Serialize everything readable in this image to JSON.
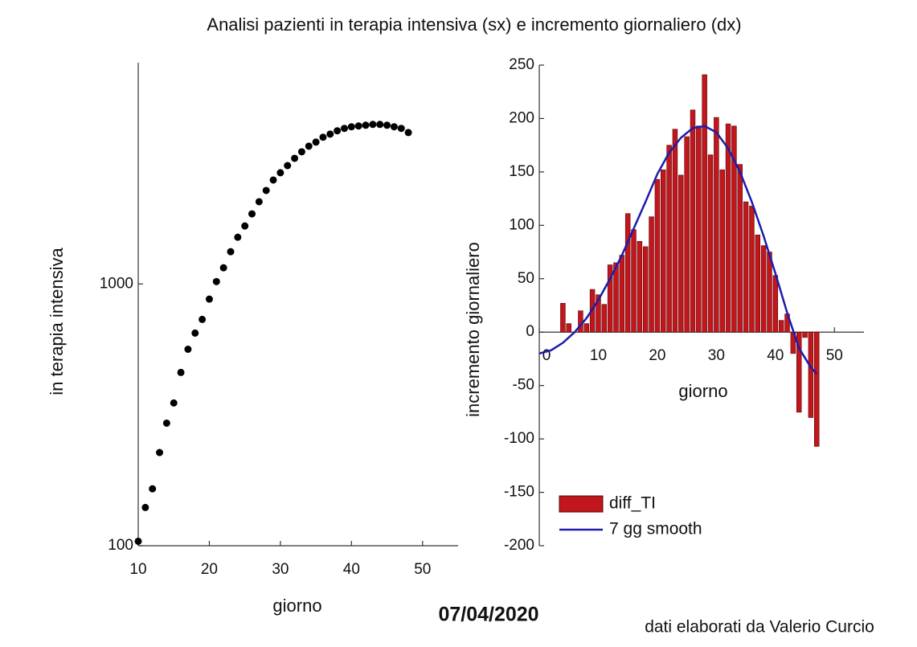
{
  "title": "Analisi pazienti in terapia intensiva (sx) e incremento giornaliero (dx)",
  "date": "07/04/2020",
  "credit": "dati elaborati da Valerio Curcio",
  "chart_data": [
    {
      "type": "scatter",
      "xlabel": "giorno",
      "ylabel": "in terapia intensiva",
      "yscale": "log",
      "color": "#000000",
      "xlim": [
        10,
        55
      ],
      "xticks": [
        10,
        20,
        30,
        40,
        50
      ],
      "ylim": [
        100,
        7000
      ],
      "yticks": [
        100,
        1000
      ],
      "x": [
        10,
        11,
        12,
        13,
        14,
        15,
        16,
        17,
        18,
        19,
        20,
        21,
        22,
        23,
        24,
        25,
        26,
        27,
        28,
        29,
        30,
        31,
        32,
        33,
        34,
        35,
        36,
        37,
        38,
        39,
        40,
        41,
        42,
        43,
        44,
        45,
        46,
        47,
        48
      ],
      "values": [
        104,
        140,
        165,
        227,
        294,
        351,
        459,
        563,
        649,
        732,
        875,
        1021,
        1153,
        1328,
        1508,
        1665,
        1852,
        2061,
        2275,
        2494,
        2659,
        2832,
        3019,
        3197,
        3360,
        3482,
        3634,
        3736,
        3846,
        3929,
        3985,
        4012,
        4040,
        4068,
        4068,
        4040,
        3985,
        3929,
        3787
      ]
    },
    {
      "type": "bar",
      "xlabel": "giorno",
      "ylabel": "incremento giornaliero",
      "legend": "lower left",
      "xlim": [
        0,
        55
      ],
      "xticks": [
        0,
        10,
        20,
        30,
        40,
        50
      ],
      "ylim": [
        -200,
        250
      ],
      "yticks": [
        -200,
        -150,
        -100,
        -50,
        0,
        50,
        100,
        150,
        200,
        250
      ],
      "series": [
        {
          "name": "diff_TI",
          "type": "bar",
          "color": "#c0161c",
          "x": [
            4,
            5,
            6,
            7,
            8,
            9,
            10,
            11,
            12,
            13,
            14,
            15,
            16,
            17,
            18,
            19,
            20,
            21,
            22,
            23,
            24,
            25,
            26,
            27,
            28,
            29,
            30,
            31,
            32,
            33,
            34,
            35,
            36,
            37,
            38,
            39,
            40,
            41,
            42,
            43,
            44,
            45,
            46,
            47
          ],
          "values": [
            27,
            8,
            0,
            20,
            8,
            40,
            35,
            26,
            63,
            65,
            72,
            111,
            96,
            85,
            80,
            108,
            143,
            152,
            175,
            190,
            147,
            183,
            208,
            193,
            241,
            166,
            201,
            152,
            195,
            193,
            157,
            122,
            118,
            91,
            81,
            75,
            53,
            11,
            17,
            -20,
            -75,
            -5,
            -80,
            -107
          ]
        },
        {
          "name": "7 gg smooth",
          "type": "line",
          "color": "#1c1caa",
          "x": [
            0,
            2,
            4,
            6,
            8,
            10,
            12,
            14,
            16,
            18,
            20,
            22,
            24,
            26,
            28,
            30,
            32,
            34,
            36,
            38,
            40,
            42,
            44,
            46,
            47
          ],
          "values": [
            -20,
            -17,
            -10,
            0,
            13,
            30,
            50,
            72,
            97,
            122,
            148,
            168,
            182,
            191,
            193,
            187,
            172,
            150,
            122,
            90,
            55,
            18,
            -15,
            -33,
            -39
          ]
        }
      ]
    }
  ]
}
